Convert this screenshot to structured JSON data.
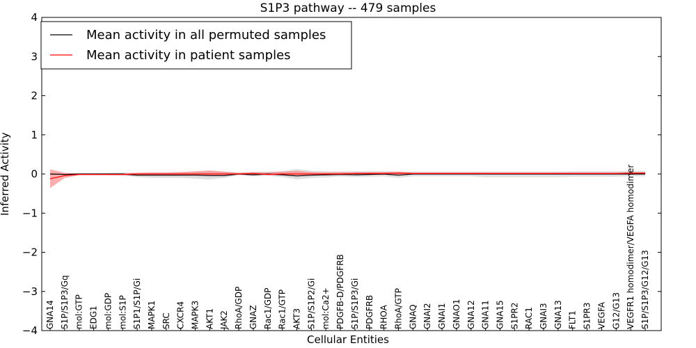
{
  "chart_data": {
    "type": "line",
    "title": "S1P3 pathway -- 479 samples",
    "xlabel": "Cellular Entities",
    "ylabel": "Inferred Activity",
    "ylim": [
      -4,
      4
    ],
    "yticks": [
      {
        "value": -4,
        "label": "−4"
      },
      {
        "value": -3,
        "label": "−3"
      },
      {
        "value": -2,
        "label": "−2"
      },
      {
        "value": -1,
        "label": "−1"
      },
      {
        "value": 0,
        "label": "0"
      },
      {
        "value": 1,
        "label": "1"
      },
      {
        "value": 2,
        "label": "2"
      },
      {
        "value": 3,
        "label": "3"
      },
      {
        "value": 4,
        "label": "4"
      }
    ],
    "legend_position": "top-left",
    "categories": [
      "GNA14",
      "S1P/S1P3/Gq",
      "mol:GTP",
      "EDG1",
      "mol:GDP",
      "mol:S1P",
      "S1P1/S1P/Gi",
      "MAPK1",
      "SRC",
      "CXCR4",
      "MAPK3",
      "AKT1",
      "JAK2",
      "RhoA/GDP",
      "GNAZ",
      "Rac1/GDP",
      "Rac1/GTP",
      "AKT3",
      "S1P/S1P2/Gi",
      "mol:Ca2+",
      "PDGFB-D/PDGFRB",
      "S1P/S1P3/Gi",
      "PDGFRB",
      "RHOA",
      "RhoA/GTP",
      "GNAQ",
      "GNAI2",
      "GNAI1",
      "GNAO1",
      "GNA12",
      "GNA11",
      "GNA15",
      "S1PR2",
      "RAC1",
      "GNAI3",
      "GNA13",
      "FLT1",
      "S1PR3",
      "VEGFA",
      "G12/G13",
      "VEGFR1 homodimer/VEGFA homodimer",
      "S1P/S1P3/G12/G13"
    ],
    "series": [
      {
        "name": "Mean activity in all permuted samples",
        "color": "#000000",
        "band_color": "#bbbbbb",
        "values": [
          0.0,
          -0.01,
          0.0,
          0.0,
          0.0,
          0.0,
          -0.03,
          -0.03,
          -0.03,
          -0.03,
          -0.03,
          -0.04,
          -0.04,
          0.0,
          -0.02,
          0.0,
          -0.02,
          -0.05,
          -0.03,
          -0.02,
          -0.01,
          -0.02,
          -0.01,
          0.0,
          -0.03,
          0.0,
          0.0,
          0.0,
          0.0,
          0.0,
          0.0,
          0.0,
          0.0,
          0.0,
          0.0,
          0.0,
          0.0,
          0.0,
          0.0,
          0.0,
          0.0,
          0.0
        ],
        "lower": [
          -0.02,
          -0.02,
          -0.02,
          -0.02,
          -0.03,
          -0.04,
          -0.08,
          -0.1,
          -0.1,
          -0.1,
          -0.12,
          -0.14,
          -0.1,
          -0.03,
          -0.06,
          -0.04,
          -0.08,
          -0.14,
          -0.1,
          -0.09,
          -0.06,
          -0.08,
          -0.07,
          -0.06,
          -0.1,
          -0.06,
          -0.06,
          -0.06,
          -0.06,
          -0.06,
          -0.08,
          -0.08,
          -0.08,
          -0.08,
          -0.08,
          -0.08,
          -0.07,
          -0.07,
          -0.07,
          -0.07,
          -0.06,
          -0.06
        ],
        "upper": [
          0.02,
          0.02,
          0.02,
          0.02,
          0.03,
          0.04,
          0.03,
          0.04,
          0.04,
          0.05,
          0.06,
          0.07,
          0.06,
          0.04,
          0.05,
          0.06,
          0.07,
          0.13,
          0.08,
          0.07,
          0.06,
          0.07,
          0.07,
          0.07,
          0.06,
          0.06,
          0.06,
          0.06,
          0.06,
          0.06,
          0.06,
          0.06,
          0.06,
          0.06,
          0.06,
          0.06,
          0.07,
          0.07,
          0.07,
          0.07,
          0.08,
          0.08
        ]
      },
      {
        "name": "Mean activity in patient samples",
        "color": "#ff0000",
        "band_color": "#ff6b6b",
        "values": [
          -0.12,
          -0.04,
          -0.01,
          -0.01,
          -0.01,
          -0.01,
          0.0,
          0.0,
          0.0,
          0.0,
          0.0,
          0.0,
          0.0,
          0.0,
          0.01,
          -0.01,
          0.0,
          0.0,
          0.0,
          0.0,
          0.0,
          0.01,
          0.01,
          0.01,
          0.02,
          0.01,
          0.01,
          0.01,
          0.01,
          0.01,
          0.01,
          0.01,
          0.01,
          0.01,
          0.01,
          0.01,
          0.01,
          0.01,
          0.01,
          0.01,
          0.02,
          0.02
        ],
        "lower": [
          -0.36,
          -0.1,
          -0.03,
          -0.03,
          -0.03,
          -0.03,
          -0.04,
          -0.03,
          -0.03,
          -0.03,
          -0.03,
          -0.04,
          -0.03,
          -0.02,
          -0.02,
          -0.03,
          -0.03,
          -0.04,
          -0.03,
          -0.03,
          -0.02,
          -0.02,
          -0.02,
          -0.02,
          -0.02,
          -0.01,
          -0.01,
          -0.01,
          -0.01,
          -0.01,
          -0.01,
          -0.01,
          -0.01,
          -0.01,
          -0.01,
          -0.01,
          -0.01,
          -0.01,
          -0.01,
          -0.01,
          -0.01,
          -0.01
        ],
        "upper": [
          0.12,
          0.03,
          0.01,
          0.01,
          0.01,
          0.01,
          0.03,
          0.04,
          0.04,
          0.05,
          0.07,
          0.09,
          0.06,
          0.03,
          0.05,
          0.04,
          0.06,
          0.08,
          0.05,
          0.04,
          0.05,
          0.05,
          0.05,
          0.05,
          0.06,
          0.04,
          0.04,
          0.04,
          0.04,
          0.04,
          0.04,
          0.04,
          0.04,
          0.04,
          0.04,
          0.04,
          0.04,
          0.04,
          0.04,
          0.04,
          0.05,
          0.05
        ]
      }
    ]
  }
}
